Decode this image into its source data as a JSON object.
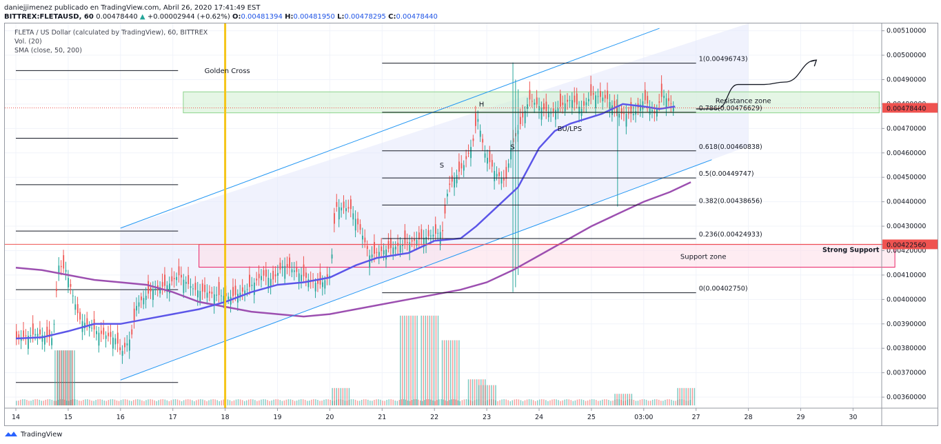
{
  "header": {
    "line1": "daniejjimenez publicado en TradingView.com, Abril 26, 2020 17:41:49 EST",
    "symbol": "BITTREX:FLETAUSD, 60",
    "price": "0.00478440",
    "change_arrow": "▲",
    "change": "+0.00002944 (+0.62%)",
    "o_label": "O:",
    "o": "0.00481394",
    "h_label": "H:",
    "h": "0.00481950",
    "l_label": "L:",
    "l": "0.00478295",
    "c_label": "C:",
    "c": "0.00478440"
  },
  "legend": {
    "title": "FLETA / US Dollar (calculated by TradingView), 60, BITTREX",
    "volume": "Vol. (20)",
    "sma": "SMA (close, 50, 200)"
  },
  "footer": {
    "brand": "TradingView"
  },
  "colors": {
    "up": "#26a69a",
    "down": "#ef5350",
    "sma50": "#5b55e8",
    "sma200": "#9c4fb0",
    "channel": "#2196f3",
    "vertical_line": "#f5c518",
    "resistance": "#8bd38b",
    "support": "#e91e63",
    "price_tag": "#ef5350"
  },
  "chart_data": {
    "type": "candlestick",
    "title": "FLETA / US Dollar (calculated by TradingView), 60, BITTREX",
    "x_ticks": [
      "14",
      "15",
      "16",
      "17",
      "18",
      "19",
      "20",
      "21",
      "22",
      "23",
      "24",
      "25",
      "03:00",
      "27",
      "28",
      "29",
      "30"
    ],
    "y_ticks": [
      "0.00360000",
      "0.00370000",
      "0.00380000",
      "0.00390000",
      "0.00400000",
      "0.00410000",
      "0.00420000",
      "0.00430000",
      "0.00440000",
      "0.00450000",
      "0.00460000",
      "0.00470000",
      "0.00480000",
      "0.00490000",
      "0.00500000",
      "0.00510000"
    ],
    "ylim": [
      0.003555,
      0.00513
    ],
    "last_price": "0.00478440",
    "support_price": "0.00422560",
    "close_path": [
      [
        14.0,
        0.00384
      ],
      [
        14.4,
        0.00386
      ],
      [
        14.7,
        0.00384
      ],
      [
        14.8,
        0.00414
      ],
      [
        14.95,
        0.00412
      ],
      [
        15.2,
        0.00392
      ],
      [
        15.6,
        0.00386
      ],
      [
        15.9,
        0.00384
      ],
      [
        16.0,
        0.00378
      ],
      [
        16.2,
        0.00385
      ],
      [
        16.3,
        0.00398
      ],
      [
        16.6,
        0.00404
      ],
      [
        16.9,
        0.00406
      ],
      [
        17.1,
        0.0041
      ],
      [
        17.4,
        0.00404
      ],
      [
        17.8,
        0.00402
      ],
      [
        18.1,
        0.00401
      ],
      [
        18.4,
        0.00404
      ],
      [
        18.7,
        0.0041
      ],
      [
        18.9,
        0.00408
      ],
      [
        19.1,
        0.00414
      ],
      [
        19.3,
        0.00412
      ],
      [
        19.6,
        0.00408
      ],
      [
        19.8,
        0.00406
      ],
      [
        20.0,
        0.0041
      ],
      [
        20.1,
        0.00438
      ],
      [
        20.4,
        0.00437
      ],
      [
        20.6,
        0.00427
      ],
      [
        20.75,
        0.00418
      ],
      [
        21.0,
        0.0042
      ],
      [
        21.3,
        0.00422
      ],
      [
        21.6,
        0.00424
      ],
      [
        21.9,
        0.00426
      ],
      [
        22.15,
        0.00428
      ],
      [
        22.25,
        0.00446
      ],
      [
        22.45,
        0.00452
      ],
      [
        22.55,
        0.00455
      ],
      [
        22.75,
        0.00466
      ],
      [
        22.8,
        0.00476
      ],
      [
        22.95,
        0.0046
      ],
      [
        23.15,
        0.00452
      ],
      [
        23.35,
        0.00448
      ],
      [
        23.45,
        0.00462
      ],
      [
        23.6,
        0.0047
      ],
      [
        23.8,
        0.00482
      ],
      [
        24.2,
        0.00476
      ],
      [
        24.6,
        0.00482
      ],
      [
        24.8,
        0.00478
      ],
      [
        25.0,
        0.00484
      ],
      [
        25.3,
        0.00482
      ],
      [
        25.5,
        0.00476
      ],
      [
        25.8,
        0.00476
      ],
      [
        26.0,
        0.00482
      ],
      [
        26.2,
        0.00476
      ],
      [
        26.35,
        0.00484
      ],
      [
        26.6,
        0.00478
      ]
    ],
    "sma50": [
      [
        14.0,
        0.00384
      ],
      [
        14.5,
        0.003845
      ],
      [
        15.0,
        0.00387
      ],
      [
        15.5,
        0.0039
      ],
      [
        16.0,
        0.0039
      ],
      [
        16.5,
        0.00392
      ],
      [
        17.0,
        0.00394
      ],
      [
        17.5,
        0.00396
      ],
      [
        18.0,
        0.00399
      ],
      [
        18.5,
        0.00403
      ],
      [
        19.0,
        0.00406
      ],
      [
        19.5,
        0.00407
      ],
      [
        20.0,
        0.00409
      ],
      [
        20.5,
        0.00414
      ],
      [
        20.9,
        0.00417
      ],
      [
        21.5,
        0.00419
      ],
      [
        22.0,
        0.00424
      ],
      [
        22.5,
        0.00425
      ],
      [
        22.8,
        0.0043
      ],
      [
        23.2,
        0.00438
      ],
      [
        23.6,
        0.00446
      ],
      [
        24.0,
        0.00462
      ],
      [
        24.3,
        0.00469
      ],
      [
        24.6,
        0.00472
      ],
      [
        24.9,
        0.00474
      ],
      [
        25.2,
        0.00476
      ],
      [
        25.6,
        0.0048
      ],
      [
        26.0,
        0.00479
      ],
      [
        26.3,
        0.00478
      ],
      [
        26.6,
        0.00479
      ]
    ],
    "sma200": [
      [
        14.0,
        0.00413
      ],
      [
        14.5,
        0.00412
      ],
      [
        15.0,
        0.0041
      ],
      [
        15.5,
        0.00408
      ],
      [
        16.0,
        0.00407
      ],
      [
        16.5,
        0.00406
      ],
      [
        17.0,
        0.00403
      ],
      [
        17.5,
        0.00399
      ],
      [
        18.0,
        0.00397
      ],
      [
        18.5,
        0.00395
      ],
      [
        19.0,
        0.00394
      ],
      [
        19.5,
        0.00393
      ],
      [
        20.0,
        0.00394
      ],
      [
        20.5,
        0.00396
      ],
      [
        21.0,
        0.00398
      ],
      [
        21.5,
        0.004
      ],
      [
        22.0,
        0.00402
      ],
      [
        22.5,
        0.00404
      ],
      [
        23.0,
        0.00407
      ],
      [
        23.5,
        0.00412
      ],
      [
        24.0,
        0.00418
      ],
      [
        24.5,
        0.00424
      ],
      [
        25.0,
        0.0043
      ],
      [
        25.5,
        0.00435
      ],
      [
        26.0,
        0.0044
      ],
      [
        26.5,
        0.00444
      ],
      [
        26.9,
        0.00448
      ]
    ],
    "fibonacci": [
      {
        "label": "1(0.00496743)",
        "value": 0.00496743
      },
      {
        "label": "0.786(0.00476629)",
        "value": 0.00476629
      },
      {
        "label": "0.618(0.00460838)",
        "value": 0.00460838
      },
      {
        "label": "0.5(0.00449747)",
        "value": 0.00449747
      },
      {
        "label": "0.382(0.00438656)",
        "value": 0.00438656
      },
      {
        "label": "0.236(0.00424933)",
        "value": 0.00424933
      },
      {
        "label": "0(0.00402750)",
        "value": 0.0040275
      }
    ],
    "fib_x_range": [
      21.0,
      27.0
    ],
    "left_levels": [
      0.004937,
      0.00466,
      0.00447,
      0.00428,
      0.00404,
      0.00366
    ],
    "left_levels_x": [
      14.0,
      17.1
    ],
    "channel": {
      "upper": [
        [
          16.0,
          0.004292
        ],
        [
          26.3,
          0.00511
        ]
      ],
      "lower": [
        [
          16.0,
          0.00367
        ],
        [
          27.3,
          0.004572
        ]
      ],
      "fill_x": [
        16.0,
        28.0
      ]
    },
    "zones": [
      {
        "name": "Resistance zone",
        "label": "Resistance zone",
        "from": 0.004764,
        "to": 0.00485,
        "x": [
          17.2,
          30.5
        ]
      },
      {
        "name": "Support zone",
        "label": "Support zone",
        "from": 0.004132,
        "to": 0.004225,
        "x": [
          17.5,
          30.8
        ]
      }
    ],
    "strong_support_label": "Strong Support",
    "golden_cross": {
      "label": "Golden Cross",
      "x": 18.0
    },
    "annotations": [
      {
        "text": "H",
        "x": 22.85,
        "y": 0.00479
      },
      {
        "text": "S",
        "x": 22.1,
        "y": 0.00454
      },
      {
        "text": "S",
        "x": 23.45,
        "y": 0.004615
      },
      {
        "text": "BU/LPS",
        "x": 24.35,
        "y": 0.00469
      }
    ],
    "projection": [
      [
        27.0,
        0.00478
      ],
      [
        27.4,
        0.00478
      ],
      [
        27.8,
        0.00488
      ],
      [
        28.3,
        0.00488
      ],
      [
        28.7,
        0.00489
      ],
      [
        29.3,
        0.00498
      ]
    ],
    "volume_spikes": [
      {
        "x": 14.9,
        "h": 0.38
      },
      {
        "x": 14.95,
        "h": 0.38
      },
      {
        "x": 20.2,
        "h": 0.12
      },
      {
        "x": 21.5,
        "h": 0.62
      },
      {
        "x": 21.9,
        "h": 0.62
      },
      {
        "x": 22.3,
        "h": 0.45
      },
      {
        "x": 22.8,
        "h": 0.18
      },
      {
        "x": 23.0,
        "h": 0.14
      },
      {
        "x": 25.6,
        "h": 0.08
      },
      {
        "x": 26.8,
        "h": 0.12
      }
    ]
  }
}
